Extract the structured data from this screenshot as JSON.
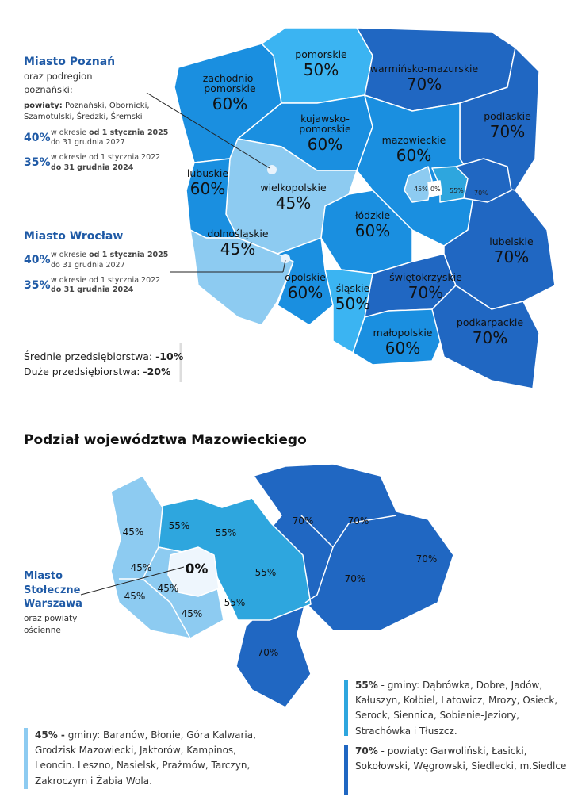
{
  "colors": {
    "p70": "#2067c2",
    "p60": "#1a8fe0",
    "p50": "#3bb4f2",
    "p55": "#2ea6de",
    "p45": "#8dcbf1",
    "p0": "#eef6fd",
    "accent": "#1f5aa6"
  },
  "poland_map": {
    "regions": [
      {
        "name": "zachodnio-\npomorskie",
        "label1": "zachodnio-",
        "label2": "pomorskie",
        "pct": "60%"
      },
      {
        "label1": "pomorskie",
        "pct": "50%"
      },
      {
        "label1": "warmińsko-mazurskie",
        "pct": "70%"
      },
      {
        "label1": "podlaskie",
        "pct": "70%"
      },
      {
        "label1": "kujawsko-",
        "label2": "pomorskie",
        "pct": "60%"
      },
      {
        "label1": "mazowieckie",
        "pct": "60%"
      },
      {
        "label1": "lubuskie",
        "pct": "60%"
      },
      {
        "label1": "wielkopolskie",
        "pct": "45%"
      },
      {
        "label1": "łódzkie",
        "pct": "60%"
      },
      {
        "label1": "dolnośląskie",
        "pct": "45%"
      },
      {
        "label1": "opolskie",
        "pct": "60%"
      },
      {
        "label1": "śląskie",
        "pct": "50%"
      },
      {
        "label1": "świętokrzyskie",
        "pct": "70%"
      },
      {
        "label1": "małopolskie",
        "pct": "60%"
      },
      {
        "label1": "lubelskie",
        "pct": "70%"
      },
      {
        "label1": "podkarpackie",
        "pct": "70%"
      }
    ],
    "warsaw_inset": [
      "45%",
      "0%",
      "55%",
      "70%"
    ]
  },
  "poznan": {
    "title": "Miasto Poznań",
    "subtitle": "oraz podregion poznański:",
    "powiaty_label": "powiaty:",
    "powiaty": "Poznański, Obornicki, Szamotulski, Średzki, Śremski",
    "rates": [
      {
        "pct": "40%",
        "line1_a": "w okresie ",
        "line1_b": "od 1 stycznia 2025",
        "line2_a": "do 31 grudnia 2027",
        "line2_b": ""
      },
      {
        "pct": "35%",
        "line1_a": "w okresie od 1 stycznia 2022",
        "line1_b": "",
        "line2_a": "",
        "line2_b": "do 31 grudnia 2024"
      }
    ]
  },
  "wroclaw": {
    "title": "Miasto Wrocław",
    "rates": [
      {
        "pct": "40%",
        "line1_a": "w okresie ",
        "line1_b": "od 1 stycznia 2025",
        "line2_a": "do 31 grudnia 2027",
        "line2_b": ""
      },
      {
        "pct": "35%",
        "line1_a": "w okresie od 1 stycznia 2022",
        "line1_b": "",
        "line2_a": "",
        "line2_b": "do 31 grudnia 2024"
      }
    ]
  },
  "reductions": [
    {
      "label": "Średnie przedsiębiorstwa: ",
      "value": "-10%"
    },
    {
      "label": "Duże przedsiębiorstwa: ",
      "value": "-20%"
    }
  ],
  "mazowieckie_section": {
    "title": "Podział województwa Mazowieckiego",
    "warsaw_title": "Miasto Stołeczne Warszawa",
    "warsaw_sub": "oraz powiaty ościenne",
    "labels": [
      "45%",
      "55%",
      "55%",
      "70%",
      "70%",
      "45%",
      "0%",
      "45%",
      "55%",
      "70%",
      "45%",
      "45%",
      "55%",
      "70%",
      "70%"
    ],
    "legend": [
      {
        "pct": "45% -",
        "text": " gminy: Baranów, Błonie, Góra Kalwaria, Grodzisk Mazowiecki, Jaktorów, Kampinos, Leoncin. Leszno, Nasielsk, Prażmów, Tarczyn, Zakroczym i Żabia Wola."
      },
      {
        "pct": "55%",
        "text": " - gminy: Dąbrówka, Dobre, Jadów, Kałuszyn, Kołbiel, Latowicz, Mrozy, Osieck, Serock, Siennica, Sobienie-Jeziory, Strachówka i Tłuszcz."
      },
      {
        "pct": "70%",
        "text": " - powiaty: Garwoliński, Łasicki, Sokołowski, Węgrowski, Siedlecki, m.Siedlce"
      }
    ]
  }
}
